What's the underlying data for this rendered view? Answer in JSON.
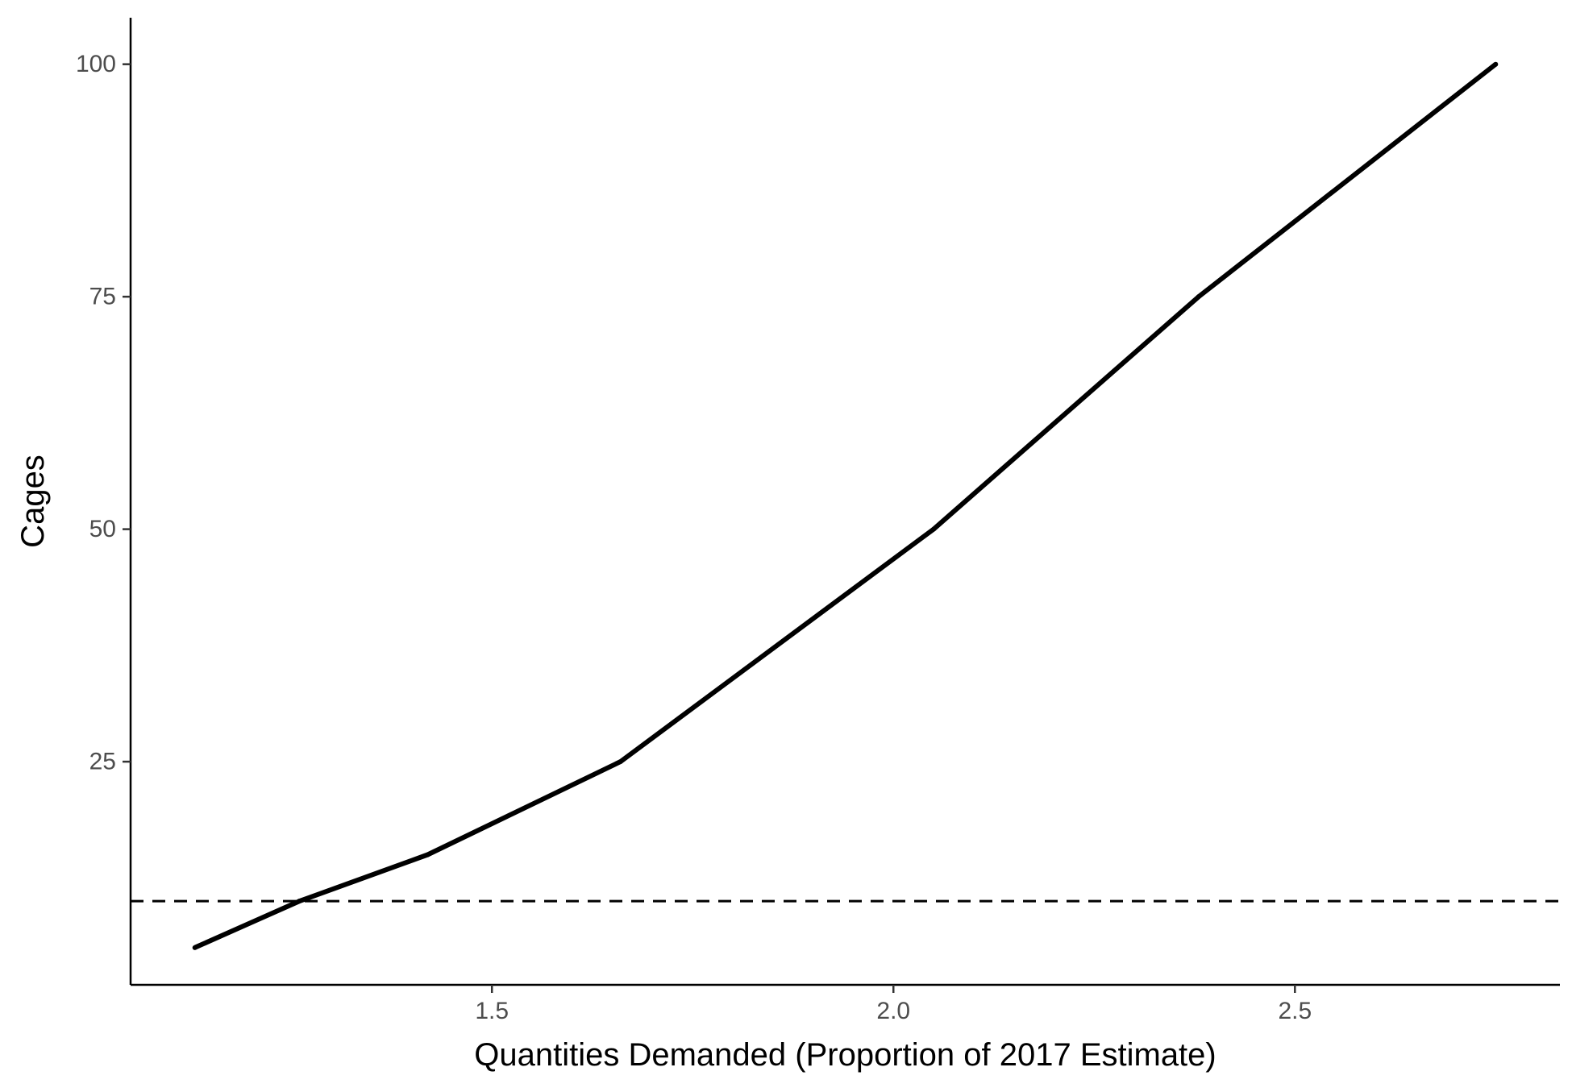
{
  "chart_data": {
    "type": "line",
    "title": "",
    "xlabel": "Quantities Demanded (Proportion of 2017 Estimate)",
    "ylabel": "Cages",
    "xlim": [
      1.05,
      2.83
    ],
    "ylim": [
      1,
      105
    ],
    "x_ticks": [
      1.5,
      2.0,
      2.5
    ],
    "x_tick_labels": [
      "1.5",
      "2.0",
      "2.5"
    ],
    "y_ticks": [
      25,
      50,
      75,
      100
    ],
    "y_tick_labels": [
      "25",
      "50",
      "75",
      "100"
    ],
    "grid": false,
    "legend": "none",
    "series": [
      {
        "x": [
          1.13,
          1.26,
          1.42,
          1.66,
          2.05,
          2.38,
          2.75
        ],
        "values": [
          5,
          10,
          15,
          25,
          50,
          75,
          100
        ],
        "color": "#000000",
        "style": "solid"
      }
    ],
    "reference_lines": [
      {
        "orientation": "horizontal",
        "y": 10,
        "color": "#000000",
        "style": "dashed"
      }
    ]
  }
}
